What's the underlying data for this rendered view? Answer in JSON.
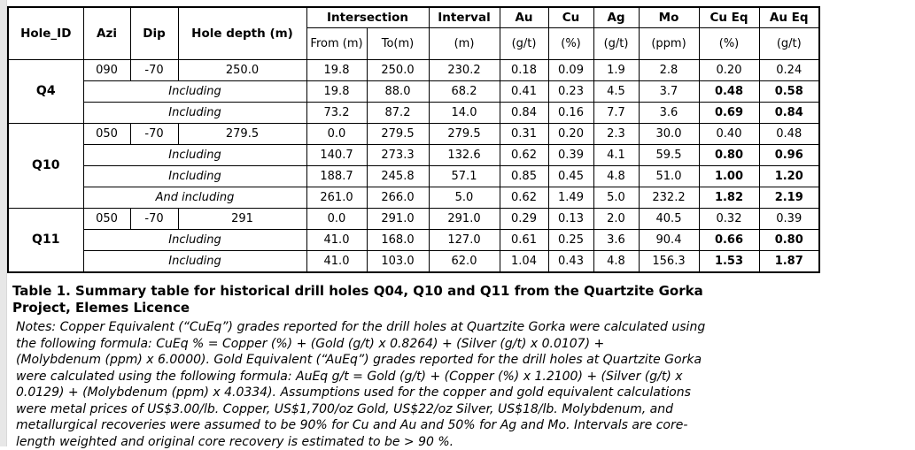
{
  "table": {
    "header": {
      "hole_id": "Hole_ID",
      "azi": "Azi",
      "dip": "Dip",
      "hole_depth": "Hole depth (m)",
      "intersection": "Intersection",
      "from": "From (m)",
      "to": "To(m)",
      "interval": "Interval",
      "interval_unit": "(m)",
      "au": "Au",
      "au_unit": "(g/t)",
      "cu": "Cu",
      "cu_unit": "(%)",
      "ag": "Ag",
      "ag_unit": "(g/t)",
      "mo": "Mo",
      "mo_unit": "(ppm)",
      "cueq": "Cu Eq",
      "cueq_unit": "(%)",
      "aueq": "Au Eq",
      "aueq_unit": "(g/t)"
    },
    "groups": [
      {
        "hole_id": "Q4",
        "rows": [
          {
            "azi": "090",
            "dip": "-70",
            "hole_depth": "250.0",
            "from": "19.8",
            "to": "250.0",
            "interval": "230.2",
            "au": "0.18",
            "cu": "0.09",
            "ag": "1.9",
            "mo": "2.8",
            "cueq": "0.20",
            "aueq": "0.24",
            "bold_eq": false
          },
          {
            "label": "Including",
            "from": "19.8",
            "to": "88.0",
            "interval": "68.2",
            "au": "0.41",
            "cu": "0.23",
            "ag": "4.5",
            "mo": "3.7",
            "cueq": "0.48",
            "aueq": "0.58",
            "bold_eq": true
          },
          {
            "label": "Including",
            "from": "73.2",
            "to": "87.2",
            "interval": "14.0",
            "au": "0.84",
            "cu": "0.16",
            "ag": "7.7",
            "mo": "3.6",
            "cueq": "0.69",
            "aueq": "0.84",
            "bold_eq": true
          }
        ]
      },
      {
        "hole_id": "Q10",
        "rows": [
          {
            "azi": "050",
            "dip": "-70",
            "hole_depth": "279.5",
            "from": "0.0",
            "to": "279.5",
            "interval": "279.5",
            "au": "0.31",
            "cu": "0.20",
            "ag": "2.3",
            "mo": "30.0",
            "cueq": "0.40",
            "aueq": "0.48",
            "bold_eq": false
          },
          {
            "label": "Including",
            "from": "140.7",
            "to": "273.3",
            "interval": "132.6",
            "au": "0.62",
            "cu": "0.39",
            "ag": "4.1",
            "mo": "59.5",
            "cueq": "0.80",
            "aueq": "0.96",
            "bold_eq": true
          },
          {
            "label": "Including",
            "from": "188.7",
            "to": "245.8",
            "interval": "57.1",
            "au": "0.85",
            "cu": "0.45",
            "ag": "4.8",
            "mo": "51.0",
            "cueq": "1.00",
            "aueq": "1.20",
            "bold_eq": true
          },
          {
            "label": "And including",
            "from": "261.0",
            "to": "266.0",
            "interval": "5.0",
            "au": "0.62",
            "cu": "1.49",
            "ag": "5.0",
            "mo": "232.2",
            "cueq": "1.82",
            "aueq": "2.19",
            "bold_eq": true
          }
        ]
      },
      {
        "hole_id": "Q11",
        "rows": [
          {
            "azi": "050",
            "dip": "-70",
            "hole_depth": "291",
            "from": "0.0",
            "to": "291.0",
            "interval": "291.0",
            "au": "0.29",
            "cu": "0.13",
            "ag": "2.0",
            "mo": "40.5",
            "cueq": "0.32",
            "aueq": "0.39",
            "bold_eq": false
          },
          {
            "label": "Including",
            "from": "41.0",
            "to": "168.0",
            "interval": "127.0",
            "au": "0.61",
            "cu": "0.25",
            "ag": "3.6",
            "mo": "90.4",
            "cueq": "0.66",
            "aueq": "0.80",
            "bold_eq": true
          },
          {
            "label": "Including",
            "from": "41.0",
            "to": "103.0",
            "interval": "62.0",
            "au": "1.04",
            "cu": "0.43",
            "ag": "4.8",
            "mo": "156.3",
            "cueq": "1.53",
            "aueq": "1.87",
            "bold_eq": true
          }
        ]
      }
    ]
  },
  "caption": {
    "lines": [
      "Table 1. Summary table for historical drill holes Q04, Q10 and Q11 from the Quartzite Gorka",
      "Project, Elemes Licence"
    ]
  },
  "notes": {
    "lines": [
      "Notes: Copper Equivalent (“CuEq”) grades reported for the drill holes at Quartzite Gorka were calculated using",
      "the following formula: CuEq % = Copper (%) + (Gold (g/t) x 0.8264) + (Silver (g/t) x 0.0107) +",
      "(Molybdenum (ppm) x 6.0000). Gold Equivalent (“AuEq”) grades reported for the drill holes at Quartzite Gorka",
      "were calculated using the following formula: AuEq g/t = Gold (g/t) + (Copper (%) x 1.2100) + (Silver (g/t) x",
      "0.0129) + (Molybdenum (ppm) x 4.0334). Assumptions used for the copper and gold equivalent calculations",
      "were metal prices of US$3.00/lb. Copper, US$1,700/oz Gold, US$22/oz Silver, US$18/lb. Molybdenum, and",
      "metallurgical recoveries were assumed to be 90% for Cu and Au and 50% for Ag and Mo. Intervals are core-",
      "length weighted and original core recovery is estimated to be > 90 %."
    ]
  }
}
